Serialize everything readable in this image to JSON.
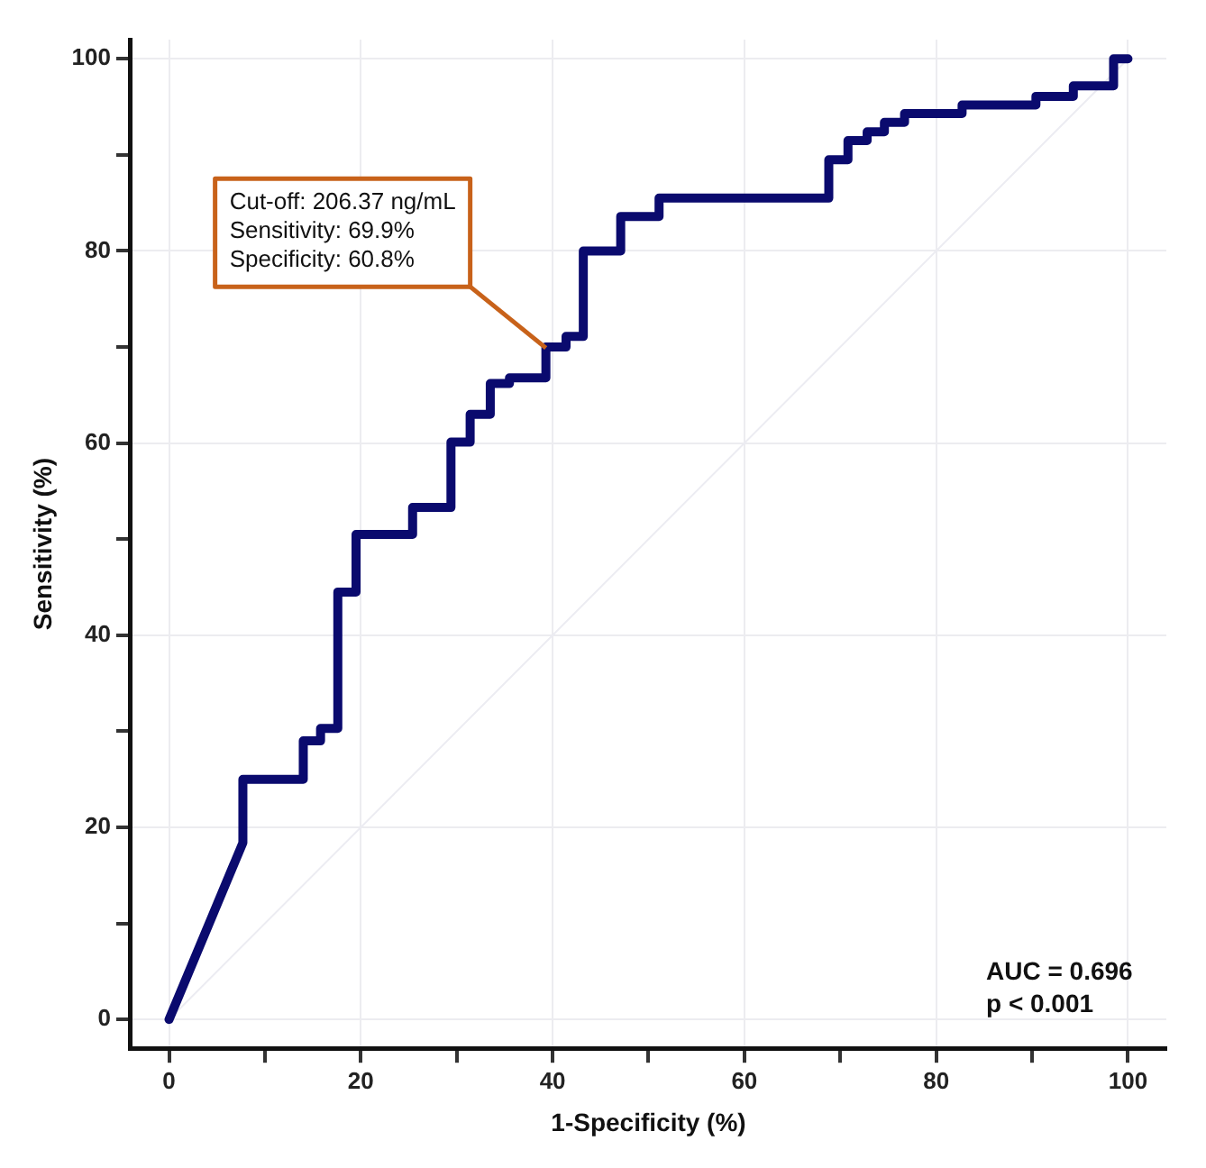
{
  "chart_data": {
    "type": "line",
    "xlabel": "1-Specificity (%)",
    "ylabel": "Sensitivity (%)",
    "xlim": [
      -4,
      104
    ],
    "ylim": [
      -3,
      102
    ],
    "xticks": [
      0,
      {
        "value": 10,
        "label": null
      },
      20,
      {
        "value": 30,
        "label": null
      },
      40,
      {
        "value": 50,
        "label": null
      },
      60,
      {
        "value": 70,
        "label": null
      },
      80,
      {
        "value": 90,
        "label": null
      },
      100
    ],
    "yticks": [
      0,
      {
        "value": 10,
        "label": null
      },
      20,
      {
        "value": 30,
        "label": null
      },
      40,
      {
        "value": 50,
        "label": null
      },
      60,
      {
        "value": 70,
        "label": null
      },
      80,
      {
        "value": 90,
        "label": null
      },
      100
    ],
    "grid": true,
    "legend": false,
    "marker": "none",
    "line_style": "solid",
    "series": [
      {
        "color": "#ececf2",
        "x": [
          0,
          100
        ],
        "values": [
          0,
          100
        ]
      },
      {
        "color": "#0a0a6e",
        "x": [
          0,
          7.7,
          7.7,
          14,
          14,
          15.8,
          15.8,
          17.6,
          17.6,
          19.5,
          19.5,
          25.4,
          25.4,
          29.4,
          29.4,
          31.4,
          31.4,
          33.5,
          33.5,
          35.5,
          35.5,
          39.3,
          39.3,
          41.4,
          41.4,
          43.2,
          43.2,
          47.1,
          47.1,
          51.1,
          51.1,
          68.8,
          68.8,
          70.8,
          70.8,
          72.8,
          72.8,
          74.6,
          74.6,
          76.7,
          76.7,
          82.7,
          82.7,
          90.4,
          90.4,
          94.3,
          94.3,
          98.5,
          98.5,
          100
        ],
        "values": [
          0,
          18.4,
          25,
          25,
          29,
          29,
          30.3,
          30.3,
          44.5,
          44.5,
          50.5,
          50.5,
          53.3,
          53.3,
          60.1,
          60.1,
          63,
          63,
          66.2,
          66.2,
          66.8,
          66.8,
          70,
          70,
          71.1,
          71.1,
          80,
          80,
          83.6,
          83.6,
          85.5,
          85.5,
          89.5,
          89.5,
          91.5,
          91.5,
          92.4,
          92.4,
          93.4,
          93.4,
          94.3,
          94.3,
          95.2,
          95.2,
          96.1,
          96.1,
          97.2,
          97.2,
          100,
          100
        ]
      }
    ],
    "annotations": [
      {
        "text": "Cut-off: 206.37 ng/mL\nSensitivity: 69.9%\nSpecificity: 60.8%",
        "x": 39.3,
        "y": 69.9
      },
      "AUC = 0.696",
      "p < 0.001"
    ]
  }
}
